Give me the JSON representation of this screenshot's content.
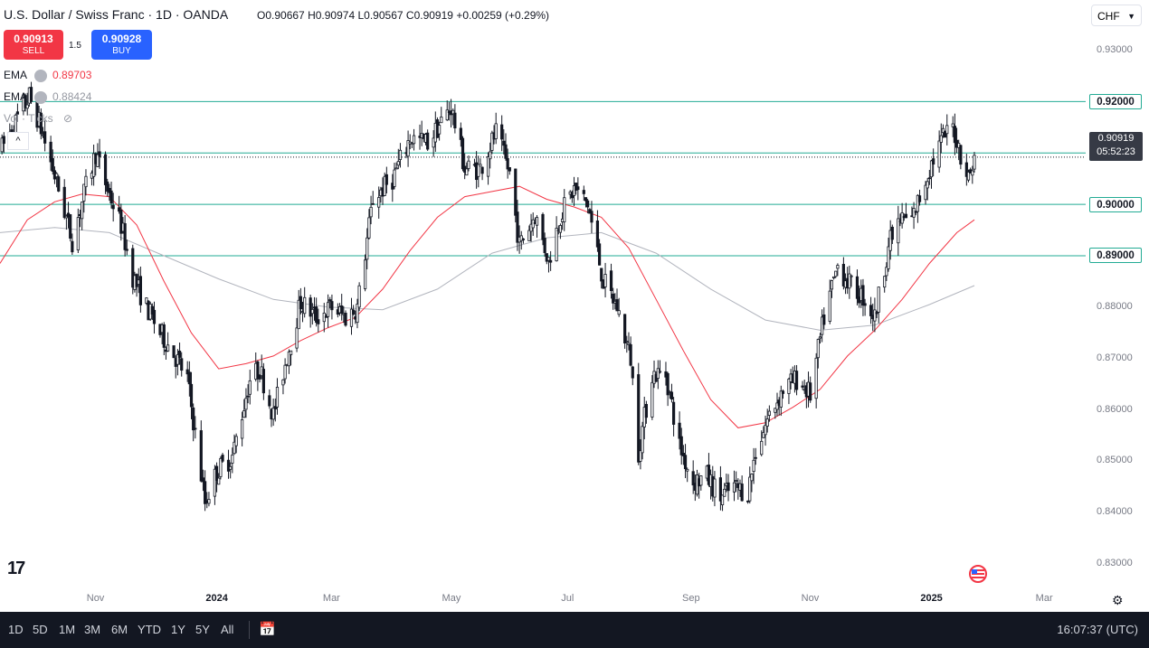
{
  "header": {
    "title": "U.S. Dollar / Swiss Franc · 1D · OANDA",
    "open_label": "O",
    "open": "0.90667",
    "high_label": "H",
    "high": "0.90974",
    "low_label": "L",
    "low": "0.90567",
    "close_label": "C",
    "close": "0.90919",
    "change": "+0.00259 (+0.29%)"
  },
  "trade": {
    "sell_price": "0.90913",
    "sell_label": "SELL",
    "buy_price": "0.90928",
    "buy_label": "BUY",
    "spread": "1.5"
  },
  "legend": {
    "ema1_name": "EMA",
    "ema1_value": "0.89703",
    "ema2_name": "EMA",
    "ema2_value": "0.88424",
    "vol_label": "Vol · Ticks"
  },
  "currency_select": "CHF",
  "colors": {
    "up": "#131722",
    "down": "#131722",
    "ema_fast": "#f23645",
    "ema_slow": "#b2b5be",
    "hline": "#22ab94",
    "sell": "#f23645",
    "buy": "#2962ff",
    "bg": "#ffffff"
  },
  "current": {
    "price": "0.90919",
    "countdown": "05:52:23"
  },
  "bottom": {
    "ranges": [
      "1D",
      "5D",
      "1M",
      "3M",
      "6M",
      "YTD",
      "1Y",
      "5Y",
      "All"
    ],
    "clock": "16:07:37 (UTC)"
  },
  "chart_data": {
    "type": "candlestick",
    "title": "U.S. Dollar / Swiss Franc · 1D · OANDA",
    "y_ticks": [
      "0.83000",
      "0.84000",
      "0.85000",
      "0.86000",
      "0.87000",
      "0.88000",
      "0.89000",
      "0.90000",
      "0.91000",
      "0.92000",
      "0.93000"
    ],
    "ylim": [
      0.8265,
      0.9345
    ],
    "horizontal_lines": [
      0.92,
      0.91,
      0.9,
      0.89
    ],
    "current_price": 0.90919,
    "x_labels": [
      "Nov",
      "2024",
      "Mar",
      "May",
      "Jul",
      "Sep",
      "Nov",
      "2025",
      "Mar"
    ],
    "x_label_bold": [
      "2024",
      "2025"
    ],
    "x_range": [
      "2023-09-13",
      "2025-03-22"
    ],
    "x_label_dates": [
      "2023-11-01",
      "2024-01-01",
      "2024-03-01",
      "2024-05-01",
      "2024-07-01",
      "2024-09-01",
      "2024-11-01",
      "2025-01-01",
      "2025-03-01"
    ],
    "price_path": [
      [
        "2023-09-14",
        0.911
      ],
      [
        "2023-09-28",
        0.921
      ],
      [
        "2023-10-03",
        0.916
      ],
      [
        "2023-10-13",
        0.903
      ],
      [
        "2023-10-20",
        0.893
      ],
      [
        "2023-10-26",
        0.902
      ],
      [
        "2023-11-01",
        0.91
      ],
      [
        "2023-11-07",
        0.903
      ],
      [
        "2023-11-14",
        0.896
      ],
      [
        "2023-11-20",
        0.886
      ],
      [
        "2023-11-27",
        0.88
      ],
      [
        "2023-12-04",
        0.875
      ],
      [
        "2023-12-11",
        0.871
      ],
      [
        "2023-12-18",
        0.866
      ],
      [
        "2023-12-27",
        0.842
      ],
      [
        "2024-01-02",
        0.848
      ],
      [
        "2024-01-10",
        0.851
      ],
      [
        "2024-01-19",
        0.866
      ],
      [
        "2024-01-24",
        0.868
      ],
      [
        "2024-01-31",
        0.859
      ],
      [
        "2024-02-06",
        0.869
      ],
      [
        "2024-02-14",
        0.881
      ],
      [
        "2024-02-22",
        0.878
      ],
      [
        "2024-03-01",
        0.88
      ],
      [
        "2024-03-08",
        0.878
      ],
      [
        "2024-03-14",
        0.88
      ],
      [
        "2024-03-22",
        0.901
      ],
      [
        "2024-04-01",
        0.905
      ],
      [
        "2024-04-10",
        0.913
      ],
      [
        "2024-04-19",
        0.912
      ],
      [
        "2024-05-01",
        0.919
      ],
      [
        "2024-05-08",
        0.907
      ],
      [
        "2024-05-16",
        0.907
      ],
      [
        "2024-05-24",
        0.914
      ],
      [
        "2024-05-31",
        0.906
      ],
      [
        "2024-06-05",
        0.892
      ],
      [
        "2024-06-13",
        0.898
      ],
      [
        "2024-06-20",
        0.889
      ],
      [
        "2024-06-26",
        0.898
      ],
      [
        "2024-07-03",
        0.903
      ],
      [
        "2024-07-10",
        0.9
      ],
      [
        "2024-07-18",
        0.885
      ],
      [
        "2024-07-25",
        0.88
      ],
      [
        "2024-08-01",
        0.87
      ],
      [
        "2024-08-05",
        0.852
      ],
      [
        "2024-08-12",
        0.867
      ],
      [
        "2024-08-19",
        0.867
      ],
      [
        "2024-08-26",
        0.853
      ],
      [
        "2024-09-02",
        0.846
      ],
      [
        "2024-09-09",
        0.847
      ],
      [
        "2024-09-16",
        0.843
      ],
      [
        "2024-09-23",
        0.845
      ],
      [
        "2024-09-30",
        0.844
      ],
      [
        "2024-10-04",
        0.852
      ],
      [
        "2024-10-11",
        0.859
      ],
      [
        "2024-10-18",
        0.864
      ],
      [
        "2024-10-25",
        0.866
      ],
      [
        "2024-11-01",
        0.863
      ],
      [
        "2024-11-08",
        0.878
      ],
      [
        "2024-11-15",
        0.888
      ],
      [
        "2024-11-22",
        0.884
      ],
      [
        "2024-11-28",
        0.882
      ],
      [
        "2024-12-04",
        0.878
      ],
      [
        "2024-12-11",
        0.892
      ],
      [
        "2024-12-17",
        0.897
      ],
      [
        "2024-12-23",
        0.897
      ],
      [
        "2025-01-02",
        0.908
      ],
      [
        "2025-01-08",
        0.913
      ],
      [
        "2025-01-13",
        0.915
      ],
      [
        "2025-01-17",
        0.91
      ],
      [
        "2025-01-21",
        0.905
      ],
      [
        "2025-01-24",
        0.909
      ]
    ],
    "ema_fast_path": [
      [
        "2023-09-13",
        0.8885
      ],
      [
        "2023-09-27",
        0.897
      ],
      [
        "2023-10-11",
        0.9005
      ],
      [
        "2023-10-25",
        0.902
      ],
      [
        "2023-11-08",
        0.9015
      ],
      [
        "2023-11-22",
        0.896
      ],
      [
        "2023-12-06",
        0.885
      ],
      [
        "2023-12-20",
        0.875
      ],
      [
        "2024-01-03",
        0.868
      ],
      [
        "2024-01-17",
        0.869
      ],
      [
        "2024-01-31",
        0.8705
      ],
      [
        "2024-02-14",
        0.8735
      ],
      [
        "2024-02-28",
        0.876
      ],
      [
        "2024-03-13",
        0.878
      ],
      [
        "2024-03-27",
        0.8835
      ],
      [
        "2024-04-10",
        0.891
      ],
      [
        "2024-04-24",
        0.8975
      ],
      [
        "2024-05-08",
        0.9015
      ],
      [
        "2024-05-22",
        0.9025
      ],
      [
        "2024-06-05",
        0.9035
      ],
      [
        "2024-06-19",
        0.901
      ],
      [
        "2024-07-03",
        0.8995
      ],
      [
        "2024-07-17",
        0.8975
      ],
      [
        "2024-07-31",
        0.8915
      ],
      [
        "2024-08-14",
        0.8815
      ],
      [
        "2024-08-28",
        0.8715
      ],
      [
        "2024-09-11",
        0.862
      ],
      [
        "2024-09-25",
        0.8565
      ],
      [
        "2024-10-09",
        0.8575
      ],
      [
        "2024-10-23",
        0.8605
      ],
      [
        "2024-11-06",
        0.864
      ],
      [
        "2024-11-20",
        0.8705
      ],
      [
        "2024-12-04",
        0.8755
      ],
      [
        "2024-12-18",
        0.8815
      ],
      [
        "2025-01-01",
        0.8885
      ],
      [
        "2025-01-15",
        0.8945
      ],
      [
        "2025-01-24",
        0.897
      ]
    ],
    "ema_slow_path": [
      [
        "2023-09-13",
        0.8945
      ],
      [
        "2023-10-11",
        0.8955
      ],
      [
        "2023-11-08",
        0.8945
      ],
      [
        "2023-12-06",
        0.89
      ],
      [
        "2024-01-03",
        0.8855
      ],
      [
        "2024-01-31",
        0.8815
      ],
      [
        "2024-02-28",
        0.88
      ],
      [
        "2024-03-27",
        0.8795
      ],
      [
        "2024-04-24",
        0.8835
      ],
      [
        "2024-05-22",
        0.8905
      ],
      [
        "2024-06-19",
        0.8935
      ],
      [
        "2024-07-17",
        0.8945
      ],
      [
        "2024-08-14",
        0.8905
      ],
      [
        "2024-09-11",
        0.8835
      ],
      [
        "2024-10-09",
        0.8775
      ],
      [
        "2024-11-06",
        0.8755
      ],
      [
        "2024-12-04",
        0.8765
      ],
      [
        "2025-01-01",
        0.8805
      ],
      [
        "2025-01-24",
        0.8842
      ]
    ]
  }
}
